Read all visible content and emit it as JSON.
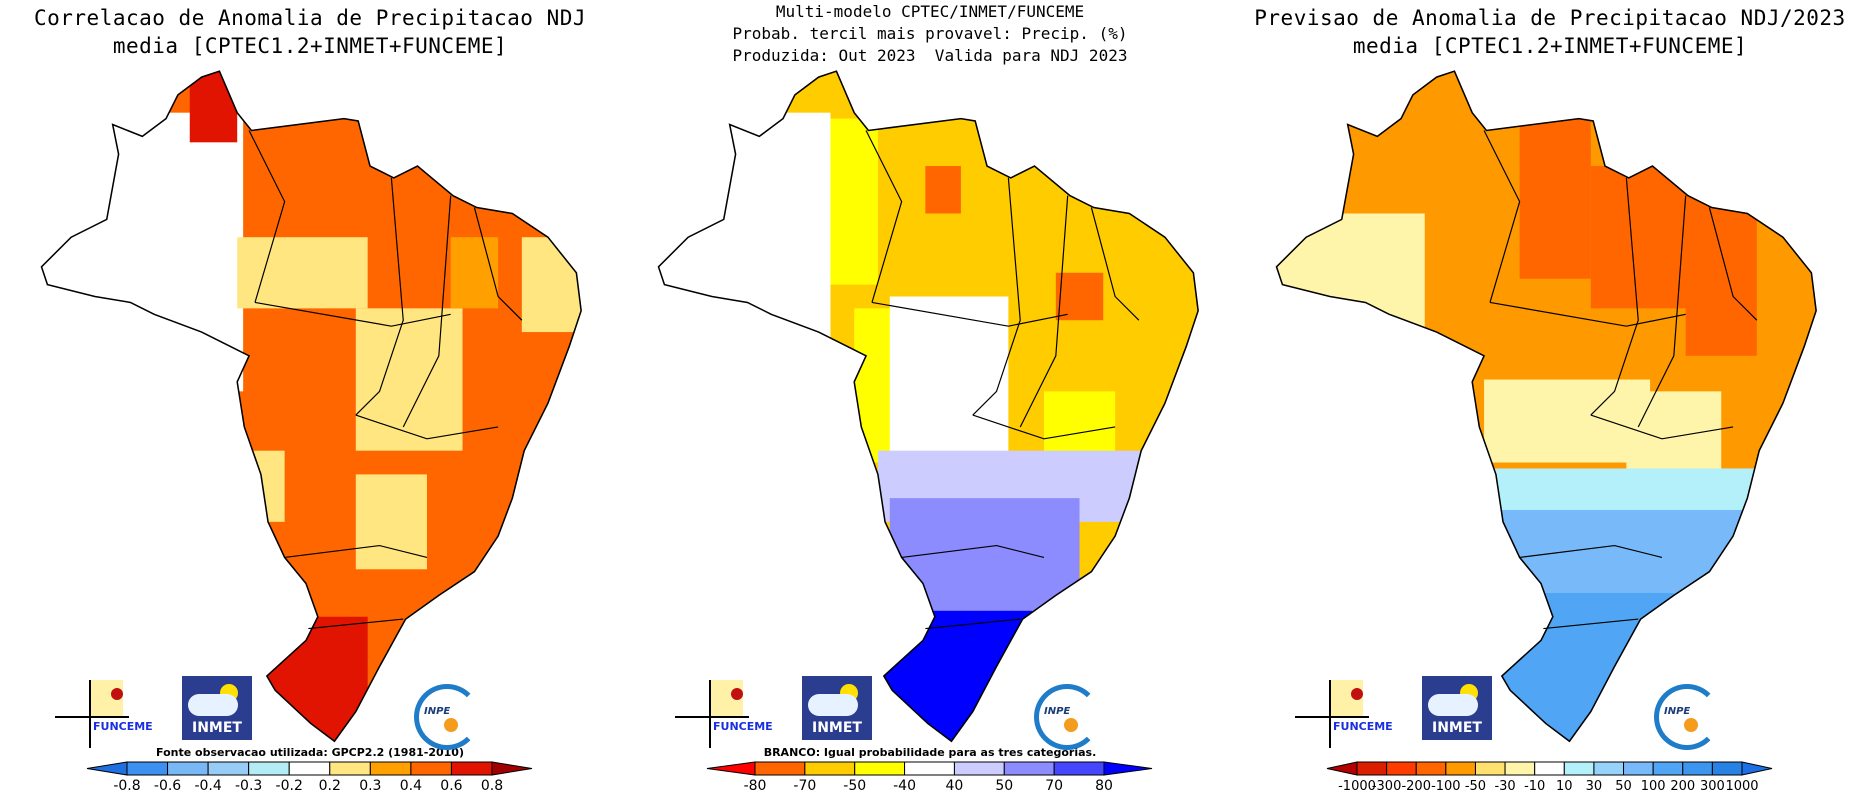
{
  "panels": [
    {
      "title_lines": [
        "Correlacao de Anomalia de Precipitacao NDJ",
        "media [CPTEC1.2+INMET+FUNCEME]"
      ],
      "note": "Fonte observacao utilizada: GPCP2.2 (1981-2010)",
      "colorbar": {
        "colors": [
          "#1f6fe0",
          "#3d8ff0",
          "#78b8f5",
          "#96ccf5",
          "#b4ecf5",
          "#ffffff",
          "#ffe680",
          "#ffa000",
          "#ff6600",
          "#e01400",
          "#a00000"
        ],
        "labels": [
          "-0.8",
          "-0.6",
          "-0.4",
          "-0.3",
          "-0.2",
          "0.2",
          "0.3",
          "0.4",
          "0.6",
          "0.8"
        ]
      },
      "map_colors": {
        "base": "#ff6600",
        "light": "#ffe680",
        "mid": "#ffa000",
        "dark": "#e01400",
        "west": "#ffffff"
      }
    },
    {
      "title_lines": [
        "Multi-modelo CPTEC/INMET/FUNCEME",
        "Probab. tercil mais provavel: Precip. (%)",
        "Produzida: Out 2023  Valida para NDJ 2023"
      ],
      "note": "BRANCO: Igual probabilidade para as tres categorias.",
      "colorbar": {
        "colors": [
          "#ff0000",
          "#ff6600",
          "#ffcc00",
          "#ffff00",
          "#ffffff",
          "#ccccff",
          "#8c8cff",
          "#4646ff",
          "#0000ff"
        ],
        "labels": [
          "-80",
          "-70",
          "-50",
          "-40",
          "40",
          "50",
          "70",
          "80"
        ]
      },
      "map_colors": {
        "base": "#ffcc00",
        "light": "#ffff00",
        "mid": "#ff6600",
        "west": "#ffffff",
        "south1": "#ccccff",
        "south2": "#8c8cff",
        "south3": "#0000ff"
      }
    },
    {
      "title_lines": [
        "Previsao de Anomalia de Precipitacao NDJ/2023",
        "media [CPTEC1.2+INMET+FUNCEME]"
      ],
      "note": "",
      "colorbar": {
        "colors": [
          "#b40000",
          "#dc1e00",
          "#ff3c00",
          "#ff6600",
          "#ff9900",
          "#ffe170",
          "#fff5aa",
          "#ffffff",
          "#b4f0fa",
          "#96d2fa",
          "#78b9fa",
          "#50a5f5",
          "#3c96f0",
          "#2882e6",
          "#1e6ee6"
        ],
        "labels": [
          "-1000",
          "-300",
          "-200",
          "-100",
          "-50",
          "-30",
          "-10",
          "10",
          "30",
          "50",
          "100",
          "200",
          "300",
          "1000"
        ]
      },
      "map_colors": {
        "base": "#ff9900",
        "dark": "#ff6600",
        "west": "#fff5aa",
        "south1": "#b4f0fa",
        "south2": "#78b9fa",
        "south3": "#50a5f5"
      }
    }
  ],
  "logos": {
    "funceme": "FUNCEME",
    "inmet": "INMET",
    "inpe": "INPE"
  }
}
